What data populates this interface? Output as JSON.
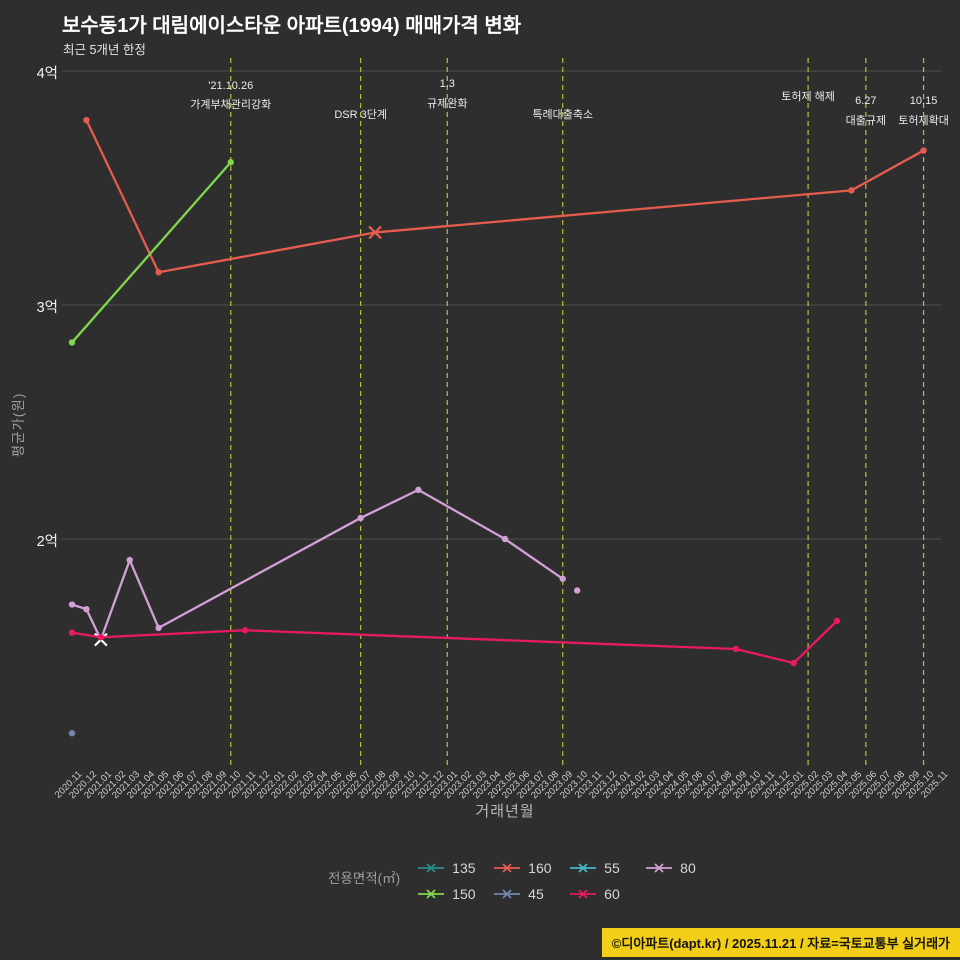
{
  "title": "보수동1가 대림에이스타운 아파트(1994) 매매가격 변화",
  "subtitle": "최근 5개년 한정",
  "y_axis": {
    "label": "평균가(원)"
  },
  "x_axis": {
    "label": "거래년월"
  },
  "legend": {
    "label": "전용면적(㎡)",
    "items": [
      "135",
      "160",
      "55",
      "80",
      "150",
      "45",
      "60"
    ]
  },
  "footer": "©디아파트(dapt.kr) / 2025.11.21 / 자료=국토교통부 실거래가",
  "colors": {
    "background": "#2e2e2e",
    "grid": "#505050",
    "event_line": "#bdbf2f",
    "footer_bg": "#f2ce16"
  },
  "chart_data": {
    "type": "line",
    "title": "보수동1가 대림에이스타운 아파트(1994) 매매가격 변화",
    "xlabel": "거래년월",
    "ylabel": "평균가(원)",
    "y_unit": "억원",
    "ylim": [
      1.0,
      4.1
    ],
    "y_ticks": [
      {
        "value": 4,
        "label": "4억"
      },
      {
        "value": 3,
        "label": "3억"
      },
      {
        "value": 2,
        "label": "2억"
      }
    ],
    "x_categories": [
      "2020.11",
      "2020.12",
      "2021.01",
      "2021.02",
      "2021.03",
      "2021.04",
      "2021.05",
      "2021.06",
      "2021.07",
      "2021.08",
      "2021.09",
      "2021.10",
      "2021.11",
      "2021.12",
      "2022.01",
      "2022.02",
      "2022.03",
      "2022.04",
      "2022.05",
      "2022.06",
      "2022.07",
      "2022.08",
      "2022.09",
      "2022.10",
      "2022.11",
      "2022.12",
      "2023.01",
      "2023.02",
      "2023.03",
      "2023.04",
      "2023.05",
      "2023.06",
      "2023.07",
      "2023.08",
      "2023.09",
      "2023.10",
      "2023.11",
      "2023.12",
      "2024.01",
      "2024.02",
      "2024.03",
      "2024.04",
      "2024.05",
      "2024.06",
      "2024.07",
      "2024.08",
      "2024.09",
      "2024.10",
      "2024.11",
      "2024.12",
      "2025.01",
      "2025.02",
      "2025.03",
      "2025.04",
      "2025.05",
      "2025.06",
      "2025.07",
      "2025.08",
      "2025.09",
      "2025.10",
      "2025.11"
    ],
    "series": [
      {
        "name": "135",
        "color": "#2a8f85",
        "points": []
      },
      {
        "name": "160",
        "color": "#e65c4f",
        "points": [
          [
            "2020.12",
            3.79
          ],
          [
            "2021.05",
            3.14
          ],
          [
            "2022.08",
            3.31
          ],
          [
            "2025.05",
            3.49
          ],
          [
            "2025.10",
            3.66
          ]
        ],
        "x_marker": "2022.08"
      },
      {
        "name": "55",
        "color": "#49b6c4",
        "points": []
      },
      {
        "name": "80",
        "color": "#d2a0d6",
        "points": [
          [
            "2020.11",
            1.72
          ],
          [
            "2020.12",
            1.7
          ],
          [
            "2021.01",
            1.57
          ],
          [
            "2021.03",
            1.91
          ],
          [
            "2021.05",
            1.62
          ],
          [
            "2022.07",
            2.09
          ],
          [
            "2022.11",
            2.21
          ],
          [
            "2023.05",
            2.0
          ],
          [
            "2023.09",
            1.83
          ]
        ],
        "isolated_points": [
          [
            "2023.10",
            1.78
          ]
        ],
        "x_marker": "2021.01",
        "x_marker_color": "#ffffff"
      },
      {
        "name": "150",
        "color": "#80d74d",
        "points": [
          [
            "2020.11",
            2.84
          ],
          [
            "2021.10",
            3.61
          ]
        ]
      },
      {
        "name": "45",
        "color": "#7187b0",
        "points": [
          [
            "2020.11",
            1.17
          ]
        ]
      },
      {
        "name": "60",
        "color": "#e91a63",
        "points": [
          [
            "2020.11",
            1.6
          ],
          [
            "2021.01",
            1.58
          ],
          [
            "2021.11",
            1.61
          ],
          [
            "2024.09",
            1.53
          ],
          [
            "2025.01",
            1.47
          ],
          [
            "2025.04",
            1.65
          ]
        ]
      }
    ],
    "events": [
      {
        "x": "2021.10",
        "lines": [
          "'21.10.26",
          "가계부채관리강화"
        ]
      },
      {
        "x": "2022.07",
        "lines": [
          "DSR 3단계"
        ]
      },
      {
        "x": "2023.01",
        "lines": [
          "1.3",
          "규제완화"
        ]
      },
      {
        "x": "2023.09",
        "lines": [
          "특례대출축소"
        ]
      },
      {
        "x": "2025.02",
        "lines": [
          "토허제 해제"
        ]
      },
      {
        "x": "2025.06",
        "lines": [
          "6.27",
          "대출규제"
        ]
      },
      {
        "x": "2025.10",
        "lines": [
          "10.15",
          "토허제확대"
        ]
      }
    ],
    "legend_position": "bottom",
    "grid": "horizontal-only"
  }
}
